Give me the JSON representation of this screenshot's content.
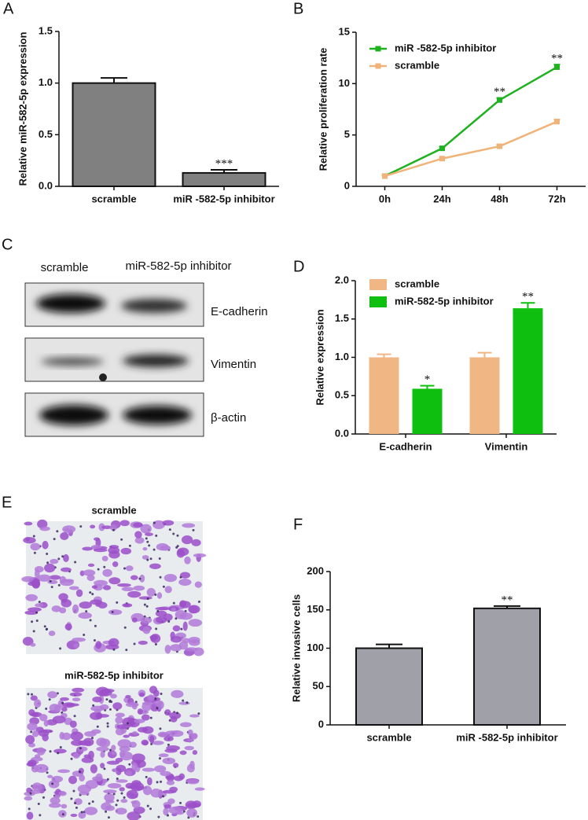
{
  "panel_labels": [
    "A",
    "B",
    "C",
    "D",
    "E",
    "F"
  ],
  "chart_data": [
    {
      "type": "bar",
      "ylabel": "Relative miR-582-5p  expression",
      "categories": [
        "scramble",
        "miR -582-5p inhibitor"
      ],
      "values": [
        1.0,
        0.13
      ],
      "errors": [
        0.05,
        0.03
      ],
      "annotations": [
        null,
        "***"
      ],
      "color": "#808080",
      "ylim": [
        0,
        1.5
      ],
      "yticks": [
        {
          "value": 0,
          "label": "0.0"
        },
        0.5,
        {
          "value": 1,
          "label": "1.0"
        },
        1.5
      ]
    },
    {
      "type": "line",
      "ylabel": "Relative proliferation rate",
      "categories": [
        "0h",
        "24h",
        "48h",
        "72h"
      ],
      "series": [
        {
          "name": "miR -582-5p inhibitor",
          "color": "#1fb11f",
          "values": [
            1.0,
            3.7,
            8.4,
            11.6
          ],
          "errors": [
            0.1,
            0.15,
            0.2,
            0.25
          ],
          "annotations": [
            null,
            null,
            "**",
            "**"
          ]
        },
        {
          "name": "scramble",
          "color": "#f0b37a",
          "values": [
            1.0,
            2.7,
            3.9,
            6.3
          ],
          "errors": [
            0.1,
            0.12,
            0.15,
            0.2
          ],
          "annotations": [
            null,
            null,
            null,
            null
          ]
        }
      ],
      "ylim": [
        0,
        15
      ],
      "yticks": [
        0,
        5,
        10,
        15
      ]
    },
    {
      "type": "bar",
      "ylabel": "Relative expression",
      "categories": [
        "E-cadherin",
        "Vimentin"
      ],
      "series": [
        {
          "name": "scramble",
          "color": "#f0b684",
          "values": [
            1.0,
            1.0
          ],
          "errors": [
            0.04,
            0.06
          ],
          "annotations": [
            null,
            null
          ]
        },
        {
          "name": "miR-582-5p inhibitor",
          "color": "#0fbf0f",
          "values": [
            0.59,
            1.64
          ],
          "errors": [
            0.04,
            0.07
          ],
          "annotations": [
            "*",
            "**"
          ]
        }
      ],
      "ylim": [
        0,
        2
      ],
      "yticks": [
        {
          "value": 0,
          "label": "0.0"
        },
        0.5,
        {
          "value": 1,
          "label": "1.0"
        },
        1.5,
        {
          "value": 2,
          "label": "2.0"
        }
      ]
    },
    {
      "type": "bar",
      "ylabel": "Relative invasive cells",
      "categories": [
        "scramble",
        "miR -582-5p inhibitor"
      ],
      "values": [
        100,
        152
      ],
      "errors": [
        5,
        3
      ],
      "annotations": [
        null,
        "**"
      ],
      "color": "#a0a0a8",
      "ylim": [
        0,
        200
      ],
      "yticks": [
        0,
        50,
        100,
        150,
        200
      ]
    }
  ],
  "blot": {
    "columns": [
      "scramble",
      "miR-582-5p inhibitor"
    ],
    "rows": [
      "E-cadherin",
      "Vimentin",
      "β-actin"
    ]
  },
  "micrographs": {
    "labels": [
      "scramble",
      "miR-582-5p inhibitor"
    ]
  }
}
